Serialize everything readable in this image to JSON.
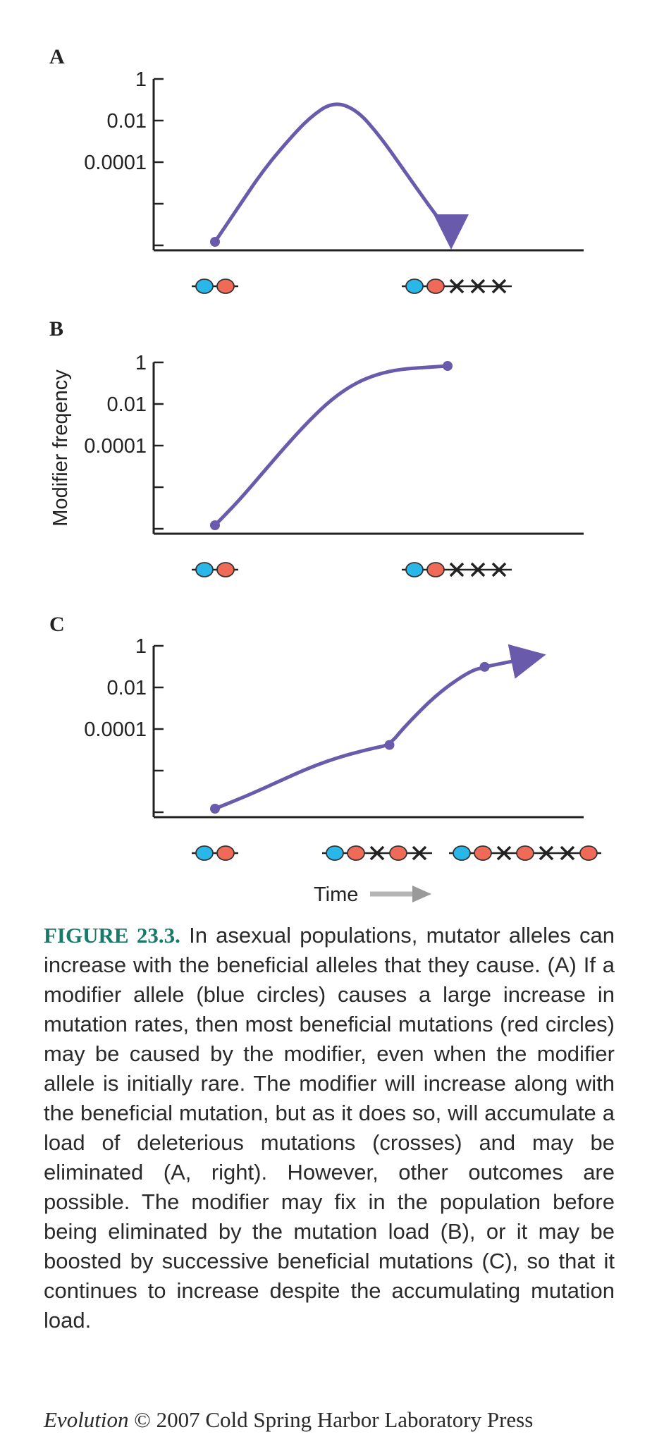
{
  "chart_data": [
    {
      "type": "line",
      "panel": "A",
      "ylabel": "",
      "yscale": "log",
      "yticks": [
        "1",
        "0.01",
        "0.0001",
        "",
        ""
      ],
      "series": [
        {
          "x": [
            0,
            0.1,
            0.2,
            0.3,
            0.4,
            0.5,
            0.6,
            0.7,
            0.8,
            0.9,
            1.0
          ],
          "y_relative": [
            0.0,
            0.22,
            0.44,
            0.62,
            0.78,
            0.88,
            0.83,
            0.66,
            0.45,
            0.24,
            0.04
          ]
        }
      ],
      "start_genotype": [
        "blue",
        "red"
      ],
      "end_genotype": [
        "blue",
        "red",
        "x",
        "x",
        "x"
      ],
      "end": "arrow"
    },
    {
      "type": "line",
      "panel": "B",
      "ylabel": "Modifier freqency",
      "yscale": "log",
      "yticks": [
        "1",
        "0.01",
        "0.0001",
        "",
        ""
      ],
      "series": [
        {
          "x": [
            0,
            0.1,
            0.2,
            0.3,
            0.4,
            0.5,
            0.6,
            0.7,
            0.8,
            0.9,
            1.0
          ],
          "y_relative": [
            0.0,
            0.15,
            0.32,
            0.49,
            0.65,
            0.79,
            0.89,
            0.95,
            0.98,
            0.99,
            1.0
          ]
        }
      ],
      "start_genotype": [
        "blue",
        "red"
      ],
      "end_genotype": [
        "blue",
        "red",
        "x",
        "x",
        "x"
      ],
      "end": "dot"
    },
    {
      "type": "line",
      "panel": "C",
      "ylabel": "",
      "yscale": "log",
      "yticks": [
        "1",
        "0.01",
        "0.0001",
        "",
        ""
      ],
      "series": [
        {
          "x": [
            0,
            0.1,
            0.2,
            0.3,
            0.4,
            0.5,
            0.55,
            0.6,
            0.7,
            0.8,
            0.85,
            0.9,
            1.0
          ],
          "y_relative": [
            0.0,
            0.08,
            0.17,
            0.26,
            0.33,
            0.38,
            0.4,
            0.52,
            0.72,
            0.86,
            0.89,
            0.91,
            0.95
          ]
        }
      ],
      "start_genotype": [
        "blue",
        "red"
      ],
      "mid_genotype": [
        "blue",
        "red",
        "x",
        "red",
        "x"
      ],
      "end_genotype": [
        "blue",
        "red",
        "x",
        "red",
        "x",
        "x",
        "red"
      ],
      "end": "arrow",
      "xlabel": "Time"
    }
  ],
  "colors": {
    "curve": "#6a5aab",
    "blue_allele": "#29b6e8",
    "red_allele": "#ef6b57",
    "axis": "#222222",
    "caption_label": "#1a7a6a"
  },
  "caption": {
    "label": "FIGURE 23.3.",
    "text": "In asexual populations, mutator alleles can increase with the beneficial alleles that they cause. (A) If a modifier allele (blue circles) causes a large increase in mutation rates, then most beneficial mutations (red circles) may be caused by the modifier, even when the modifier allele is initially rare. The modifier will increase along with the beneficial mutation, but as it does so, will accumulate a load of deleterious mutations (crosses) and may be eliminated (A, right). However, other outcomes are possible. The modifier may fix in the population before being eliminated by the mutation load (B), or it may be boosted by successive beneficial mutations (C), so that it continues to increase despite the accumulating mutation load."
  },
  "credit": {
    "book": "Evolution",
    "rest": "© 2007 Cold Spring Harbor Laboratory Press"
  }
}
